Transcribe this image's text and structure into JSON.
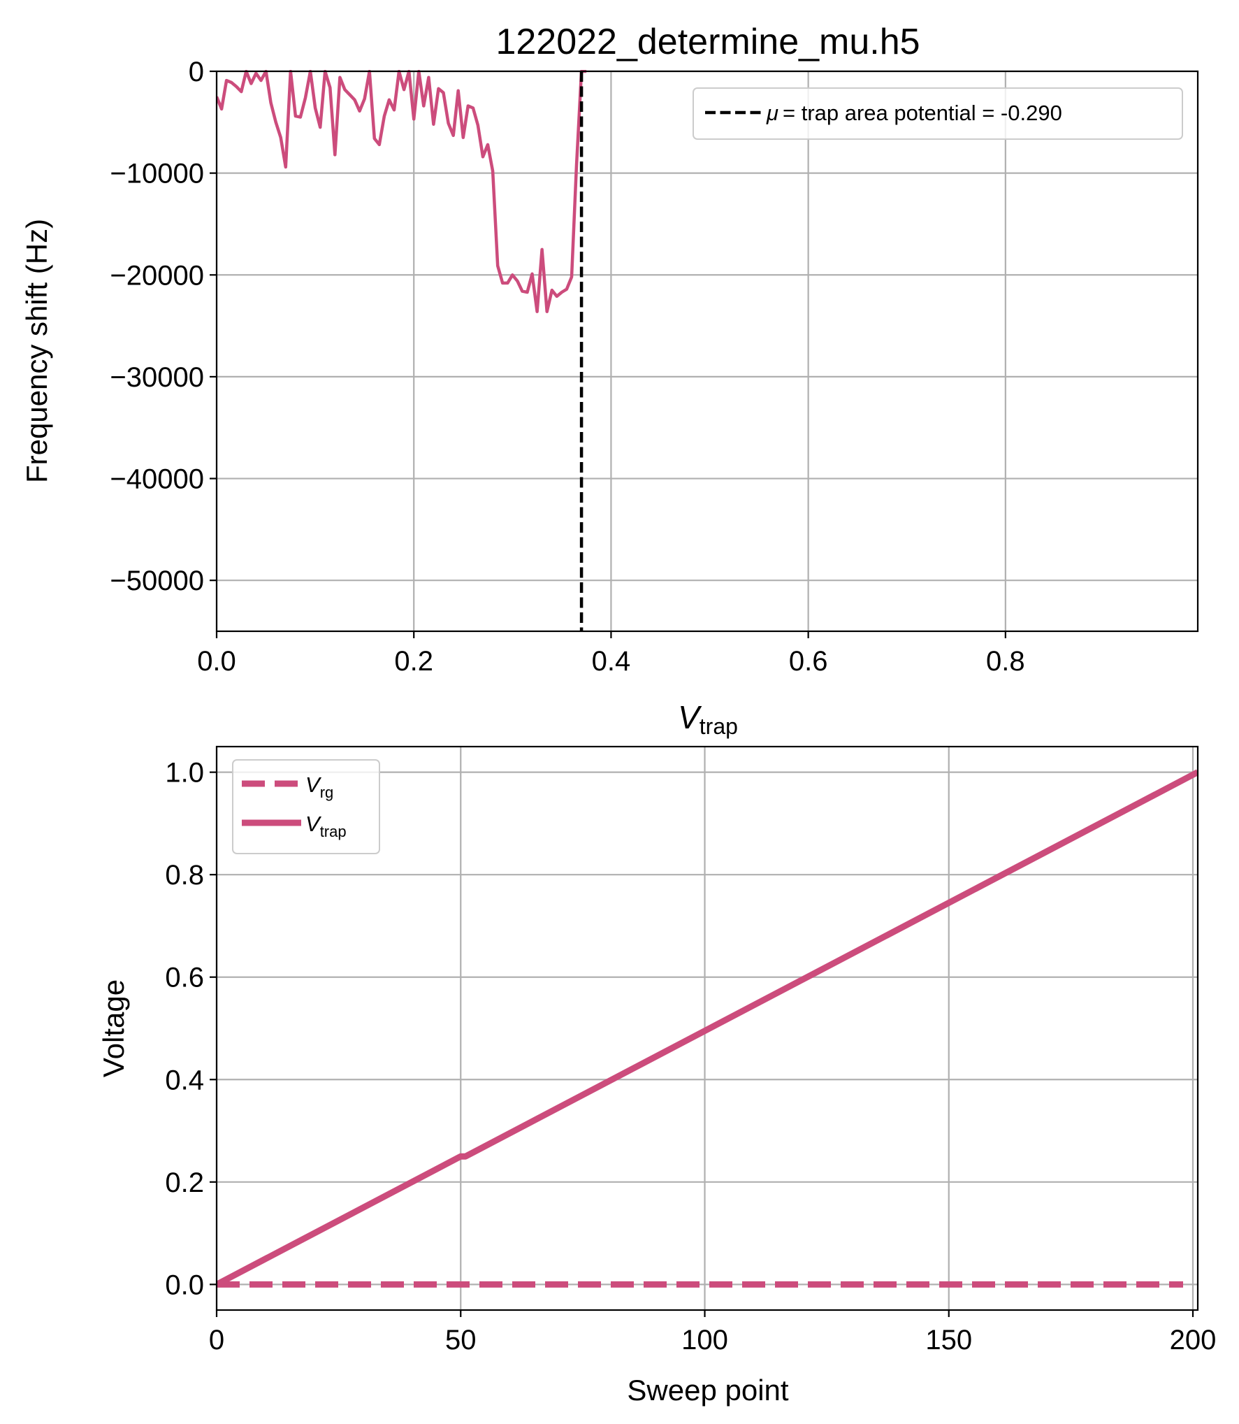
{
  "colors": {
    "series": "#cc4c7c",
    "threshold": "#000000",
    "grid": "#b0b0b0"
  },
  "chart_data": [
    {
      "type": "line",
      "title": "122022_determine_mu.h5",
      "xlabel": "V",
      "xlabel_sub": "trap",
      "ylabel": "Frequency shift (Hz)",
      "xlim": [
        0.0,
        0.995
      ],
      "ylim": [
        -55000,
        0
      ],
      "xticks": [
        0.0,
        0.2,
        0.4,
        0.6,
        0.8
      ],
      "xtick_labels": [
        "0.0",
        "0.2",
        "0.4",
        "0.6",
        "0.8"
      ],
      "yticks": [
        0,
        -10000,
        -20000,
        -30000,
        -40000,
        -50000
      ],
      "ytick_labels": [
        "0",
        "−10000",
        "−20000",
        "−30000",
        "−40000",
        "−50000"
      ],
      "grid": true,
      "legend_position": "top-right",
      "series": [
        {
          "style": "solid",
          "x": [
            0.0,
            0.005,
            0.01,
            0.015,
            0.02,
            0.025,
            0.03,
            0.035,
            0.04,
            0.045,
            0.05,
            0.055,
            0.06,
            0.065,
            0.07,
            0.075,
            0.08,
            0.085,
            0.09,
            0.095,
            0.1,
            0.105,
            0.11,
            0.115,
            0.12,
            0.125,
            0.13,
            0.135,
            0.14,
            0.145,
            0.15,
            0.155,
            0.16,
            0.165,
            0.17,
            0.175,
            0.18,
            0.185,
            0.19,
            0.195,
            0.2,
            0.205,
            0.21,
            0.215,
            0.22,
            0.225,
            0.23,
            0.235,
            0.24,
            0.245,
            0.25,
            0.255,
            0.26,
            0.265,
            0.27,
            0.275,
            0.28,
            0.285,
            0.29,
            0.295,
            0.3,
            0.305,
            0.31,
            0.315,
            0.32,
            0.325,
            0.33,
            0.335,
            0.34,
            0.345,
            0.35,
            0.355,
            0.36,
            0.365,
            0.37,
            0.375
          ],
          "y": [
            -2500,
            -3700,
            -900,
            -1100,
            -1500,
            -2000,
            0,
            -1200,
            -200,
            -900,
            0,
            -3100,
            -5000,
            -6500,
            -9400,
            0,
            -4400,
            -4500,
            -2600,
            0,
            -3600,
            -5500,
            0,
            -1600,
            -8200,
            -600,
            -1800,
            -2300,
            -2800,
            -3900,
            -2700,
            0,
            -6600,
            -7200,
            -4400,
            -2800,
            -3800,
            0,
            -1800,
            0,
            -4700,
            0,
            -3400,
            -600,
            -5200,
            -1700,
            -2100,
            -5100,
            -6300,
            -1900,
            -6500,
            -3400,
            -3600,
            -5300,
            -8400,
            -7200,
            -9800,
            -19100,
            -20800,
            -20800,
            -20000,
            -20600,
            -21600,
            -21700,
            -19900,
            -23600,
            -17500,
            -23600,
            -21500,
            -22100,
            -21700,
            -21400,
            -20200,
            -9200,
            0,
            0
          ]
        }
      ],
      "threshold": {
        "x": 0.37,
        "style": "dashed",
        "label": "= trap area potential = -0.290",
        "label_symbol": "μ"
      }
    },
    {
      "type": "line",
      "xlabel": "Sweep point",
      "ylabel": "Voltage",
      "xlim": [
        0,
        201
      ],
      "ylim": [
        -0.05,
        1.05
      ],
      "xticks": [
        0,
        50,
        100,
        150,
        200
      ],
      "xtick_labels": [
        "0",
        "50",
        "100",
        "150",
        "200"
      ],
      "yticks": [
        0.0,
        0.2,
        0.4,
        0.6,
        0.8,
        1.0
      ],
      "ytick_labels": [
        "0.0",
        "0.2",
        "0.4",
        "0.6",
        "0.8",
        "1.0"
      ],
      "grid": true,
      "legend_position": "top-left",
      "series": [
        {
          "name": "V",
          "name_sub": "rg",
          "style": "dashed",
          "x": [
            0,
            198
          ],
          "y": [
            0.0,
            0.0
          ]
        },
        {
          "name": "V",
          "name_sub": "trap",
          "style": "solid",
          "x": [
            0,
            50,
            51,
            201
          ],
          "y": [
            0.0,
            0.25,
            0.25,
            1.0
          ]
        }
      ]
    }
  ]
}
